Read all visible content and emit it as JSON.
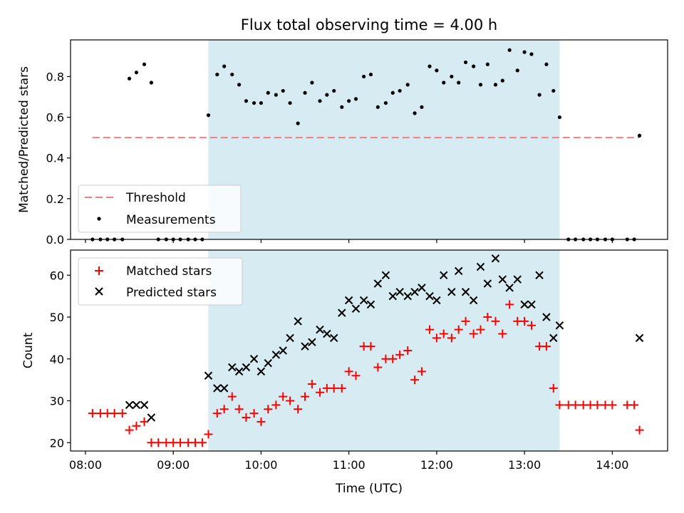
{
  "chart_data": [
    {
      "type": "scatter",
      "title": "Flux total observing time = 4.00 h",
      "xlabel": "",
      "ylabel": "Matched/Predicted stars",
      "xlim": [
        7.83,
        14.63
      ],
      "ylim": [
        0.0,
        0.98
      ],
      "yticks": [
        0.0,
        0.2,
        0.4,
        0.6,
        0.8
      ],
      "ytick_labels": [
        "0.0",
        "0.2",
        "0.4",
        "0.6",
        "0.8"
      ],
      "shaded_span": [
        9.4,
        13.4
      ],
      "threshold": {
        "name": "Threshold",
        "value": 0.5,
        "x_range": [
          8.08,
          14.31
        ],
        "color": "#f08080"
      },
      "series": [
        {
          "name": "Measurements",
          "color": "#000000",
          "x": [
            8.08,
            8.17,
            8.25,
            8.33,
            8.42,
            8.5,
            8.58,
            8.67,
            8.75,
            8.83,
            8.92,
            9.0,
            9.08,
            9.17,
            9.25,
            9.33,
            9.4,
            9.5,
            9.58,
            9.67,
            9.75,
            9.83,
            9.92,
            10.0,
            10.08,
            10.17,
            10.25,
            10.33,
            10.42,
            10.5,
            10.58,
            10.67,
            10.75,
            10.83,
            10.92,
            11.0,
            11.08,
            11.17,
            11.25,
            11.33,
            11.42,
            11.5,
            11.58,
            11.67,
            11.75,
            11.83,
            11.92,
            12.0,
            12.08,
            12.17,
            12.25,
            12.33,
            12.42,
            12.5,
            12.58,
            12.67,
            12.75,
            12.83,
            12.92,
            13.0,
            13.08,
            13.17,
            13.25,
            13.33,
            13.4,
            13.5,
            13.58,
            13.67,
            13.75,
            13.83,
            13.92,
            14.0,
            14.17,
            14.25,
            14.31
          ],
          "y": [
            0,
            0,
            0,
            0,
            0,
            0.79,
            0.82,
            0.86,
            0.77,
            0,
            0,
            0,
            0,
            0,
            0,
            0,
            0.61,
            0.81,
            0.85,
            0.81,
            0.76,
            0.68,
            0.67,
            0.67,
            0.72,
            0.71,
            0.73,
            0.67,
            0.57,
            0.72,
            0.77,
            0.68,
            0.71,
            0.73,
            0.65,
            0.68,
            0.69,
            0.8,
            0.81,
            0.65,
            0.67,
            0.72,
            0.73,
            0.76,
            0.62,
            0.65,
            0.85,
            0.83,
            0.77,
            0.8,
            0.77,
            0.87,
            0.85,
            0.76,
            0.86,
            0.76,
            0.78,
            0.93,
            0.83,
            0.92,
            0.91,
            0.71,
            0.86,
            0.73,
            0.6,
            0,
            0,
            0,
            0,
            0,
            0,
            0,
            0,
            0,
            0.51
          ]
        }
      ],
      "legend": {
        "position": "bottom-left",
        "entries": [
          "Threshold",
          "Measurements"
        ]
      }
    },
    {
      "type": "scatter",
      "title": "",
      "xlabel": "Time (UTC)",
      "ylabel": "Count",
      "xlim": [
        7.83,
        14.63
      ],
      "ylim": [
        18,
        66
      ],
      "xticks": [
        8,
        9,
        10,
        11,
        12,
        13,
        14
      ],
      "xtick_labels": [
        "08:00",
        "09:00",
        "10:00",
        "11:00",
        "12:00",
        "13:00",
        "14:00"
      ],
      "yticks": [
        20,
        30,
        40,
        50,
        60
      ],
      "ytick_labels": [
        "20",
        "30",
        "40",
        "50",
        "60"
      ],
      "shaded_span": [
        9.4,
        13.4
      ],
      "series": [
        {
          "name": "Matched stars",
          "marker": "plus",
          "color": "#ff0000",
          "x": [
            8.08,
            8.17,
            8.25,
            8.33,
            8.42,
            8.5,
            8.58,
            8.67,
            8.75,
            8.83,
            8.92,
            9.0,
            9.08,
            9.17,
            9.25,
            9.33,
            9.4,
            9.5,
            9.58,
            9.67,
            9.75,
            9.83,
            9.92,
            10.0,
            10.08,
            10.17,
            10.25,
            10.33,
            10.42,
            10.5,
            10.58,
            10.67,
            10.75,
            10.83,
            10.92,
            11.0,
            11.08,
            11.17,
            11.25,
            11.33,
            11.42,
            11.5,
            11.58,
            11.67,
            11.75,
            11.83,
            11.92,
            12.0,
            12.08,
            12.17,
            12.25,
            12.33,
            12.42,
            12.5,
            12.58,
            12.67,
            12.75,
            12.83,
            12.92,
            13.0,
            13.08,
            13.17,
            13.25,
            13.33,
            13.4,
            13.5,
            13.58,
            13.67,
            13.75,
            13.83,
            13.92,
            14.0,
            14.17,
            14.25,
            14.31
          ],
          "y": [
            27,
            27,
            27,
            27,
            27,
            23,
            24,
            25,
            20,
            20,
            20,
            20,
            20,
            20,
            20,
            20,
            22,
            27,
            28,
            31,
            28,
            26,
            27,
            25,
            28,
            29,
            31,
            30,
            28,
            31,
            34,
            32,
            33,
            33,
            33,
            37,
            36,
            43,
            43,
            38,
            40,
            40,
            41,
            42,
            35,
            37,
            47,
            45,
            46,
            45,
            47,
            49,
            46,
            47,
            50,
            49,
            46,
            53,
            49,
            49,
            48,
            43,
            43,
            33,
            29,
            29,
            29,
            29,
            29,
            29,
            29,
            29,
            29,
            29,
            23
          ]
        },
        {
          "name": "Predicted stars",
          "marker": "x",
          "color": "#000000",
          "x": [
            8.5,
            8.58,
            8.67,
            8.75,
            9.4,
            9.5,
            9.58,
            9.67,
            9.75,
            9.83,
            9.92,
            10.0,
            10.08,
            10.17,
            10.25,
            10.33,
            10.42,
            10.5,
            10.58,
            10.67,
            10.75,
            10.83,
            10.92,
            11.0,
            11.08,
            11.17,
            11.25,
            11.33,
            11.42,
            11.5,
            11.58,
            11.67,
            11.75,
            11.83,
            11.92,
            12.0,
            12.08,
            12.17,
            12.25,
            12.33,
            12.42,
            12.5,
            12.58,
            12.67,
            12.75,
            12.83,
            12.92,
            13.0,
            13.08,
            13.17,
            13.25,
            13.33,
            13.4,
            14.31
          ],
          "y": [
            29,
            29,
            29,
            26,
            36,
            33,
            33,
            38,
            37,
            38,
            40,
            37,
            39,
            41,
            42,
            45,
            49,
            43,
            44,
            47,
            46,
            45,
            51,
            54,
            52,
            54,
            53,
            58,
            60,
            55,
            56,
            55,
            56,
            57,
            55,
            54,
            60,
            56,
            61,
            56,
            54,
            62,
            58,
            64,
            59,
            57,
            59,
            53,
            53,
            60,
            50,
            45,
            48,
            45
          ]
        }
      ],
      "legend": {
        "position": "top-left",
        "entries": [
          "Matched stars",
          "Predicted stars"
        ]
      }
    }
  ]
}
